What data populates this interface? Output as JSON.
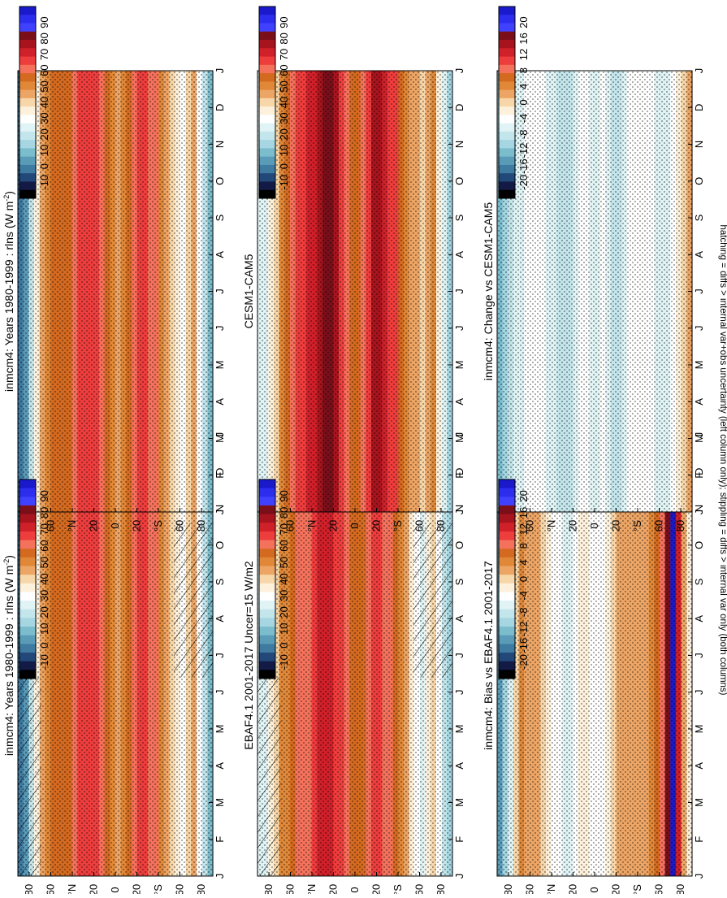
{
  "figure": {
    "rotation": "90deg clockwise",
    "footnote": "hatching = diffs > internal var+obs uncertainty (left column only); stippling = diffs > internal var only (both columns)"
  },
  "colorbars": {
    "absolute": {
      "labels": [
        "90",
        "80",
        "70",
        "60",
        "50",
        "40",
        "30",
        "20",
        "10",
        "0",
        "-10"
      ],
      "colors": [
        "#1a1acc",
        "#2d2dee",
        "#4040ff",
        "#7a0f1a",
        "#a8141d",
        "#d0202a",
        "#ee3d3d",
        "#f4715c",
        "#d46a20",
        "#e08838",
        "#eca565",
        "#f7d7aa",
        "#fdf1dc",
        "#ffffff",
        "#e0f3f5",
        "#c3e6ec",
        "#a5d6e1",
        "#7bbccd",
        "#5a9bb8",
        "#3f7aa0",
        "#22487a",
        "#121a45",
        "#000000"
      ]
    },
    "difference": {
      "labels": [
        "20",
        "16",
        "12",
        "8",
        "4",
        "0",
        "-4",
        "-8",
        "-12",
        "-16",
        "-20"
      ],
      "colors": [
        "#1a1acc",
        "#2d2dee",
        "#4040ff",
        "#7a0f1a",
        "#a8141d",
        "#d0202a",
        "#ee3d3d",
        "#f4715c",
        "#d46a20",
        "#e08838",
        "#eca565",
        "#f7d7aa",
        "#fdf1dc",
        "#ffffff",
        "#e0f3f5",
        "#c3e6ec",
        "#a5d6e1",
        "#7bbccd",
        "#5a9bb8",
        "#3f7aa0",
        "#22487a",
        "#121a45",
        "#000000"
      ]
    }
  },
  "chart_data": [
    {
      "type": "heatmap",
      "panel": "row1-left",
      "title": "inmcm4: Years 1980-1999 : rlns (W m",
      "title_sup": "-2",
      "title_tail": ")",
      "x": [
        "J",
        "F",
        "M",
        "A",
        "M",
        "J",
        "J",
        "A",
        "S",
        "O",
        "N",
        "D",
        "J"
      ],
      "y_ticks": [
        "80",
        "60",
        "°N",
        "20",
        "0",
        "20",
        "°S",
        "60",
        "80"
      ],
      "colorbar": "absolute",
      "lat_mean_profile": [
        {
          "lat": 85,
          "value": 5
        },
        {
          "lat": 70,
          "value": 40
        },
        {
          "lat": 55,
          "value": 55
        },
        {
          "lat": 40,
          "value": 55
        },
        {
          "lat": 25,
          "value": 65
        },
        {
          "lat": 10,
          "value": 55
        },
        {
          "lat": 0,
          "value": 45
        },
        {
          "lat": -10,
          "value": 50
        },
        {
          "lat": -20,
          "value": 62
        },
        {
          "lat": -35,
          "value": 58
        },
        {
          "lat": -50,
          "value": 42
        },
        {
          "lat": -62,
          "value": 32
        },
        {
          "lat": -72,
          "value": 45
        },
        {
          "lat": -85,
          "value": 15
        }
      ]
    },
    {
      "type": "heatmap",
      "panel": "row1-right",
      "title": "inmcm4: Years 1980-1999 : rlns (W m",
      "title_sup": "-2",
      "title_tail": ")",
      "x": [
        "J",
        "F",
        "M",
        "A",
        "M",
        "J",
        "J",
        "A",
        "S",
        "O",
        "N",
        "D",
        "J"
      ],
      "y_ticks": [
        "80",
        "60",
        "°N",
        "20",
        "0",
        "20",
        "°S",
        "60",
        "80"
      ],
      "colorbar": "absolute",
      "lat_mean_profile": [
        {
          "lat": 85,
          "value": 5
        },
        {
          "lat": 70,
          "value": 40
        },
        {
          "lat": 55,
          "value": 55
        },
        {
          "lat": 40,
          "value": 55
        },
        {
          "lat": 25,
          "value": 65
        },
        {
          "lat": 10,
          "value": 55
        },
        {
          "lat": 0,
          "value": 45
        },
        {
          "lat": -10,
          "value": 50
        },
        {
          "lat": -20,
          "value": 62
        },
        {
          "lat": -35,
          "value": 58
        },
        {
          "lat": -50,
          "value": 42
        },
        {
          "lat": -62,
          "value": 32
        },
        {
          "lat": -72,
          "value": 45
        },
        {
          "lat": -85,
          "value": 15
        }
      ]
    },
    {
      "type": "heatmap",
      "panel": "row2-left",
      "title": "EBAF4.1 2001-2017 Uncer=15 W/m2",
      "x": [
        "J",
        "F",
        "M",
        "A",
        "M",
        "J",
        "J",
        "A",
        "S",
        "O",
        "N",
        "D",
        "J"
      ],
      "y_ticks": [
        "80",
        "60",
        "°N",
        "20",
        "0",
        "20",
        "°S",
        "60",
        "80"
      ],
      "colorbar": "absolute",
      "lat_mean_profile": [
        {
          "lat": 85,
          "value": 25
        },
        {
          "lat": 70,
          "value": 45
        },
        {
          "lat": 55,
          "value": 55
        },
        {
          "lat": 40,
          "value": 60
        },
        {
          "lat": 25,
          "value": 68
        },
        {
          "lat": 10,
          "value": 58
        },
        {
          "lat": 0,
          "value": 50
        },
        {
          "lat": -10,
          "value": 55
        },
        {
          "lat": -20,
          "value": 62
        },
        {
          "lat": -35,
          "value": 55
        },
        {
          "lat": -50,
          "value": 40
        },
        {
          "lat": -62,
          "value": 28
        },
        {
          "lat": -72,
          "value": 40
        },
        {
          "lat": -85,
          "value": 20
        }
      ]
    },
    {
      "type": "heatmap",
      "panel": "row2-right",
      "title": "CESM1-CAM5",
      "x": [
        "J",
        "F",
        "M",
        "A",
        "M",
        "J",
        "J",
        "A",
        "S",
        "O",
        "N",
        "D",
        "J"
      ],
      "y_ticks": [
        "80",
        "60",
        "°N",
        "20",
        "0",
        "20",
        "°S",
        "60",
        "80"
      ],
      "colorbar": "absolute",
      "lat_mean_profile": [
        {
          "lat": 85,
          "value": 25
        },
        {
          "lat": 70,
          "value": 45
        },
        {
          "lat": 55,
          "value": 60
        },
        {
          "lat": 40,
          "value": 65
        },
        {
          "lat": 25,
          "value": 78
        },
        {
          "lat": 10,
          "value": 60
        },
        {
          "lat": 0,
          "value": 50
        },
        {
          "lat": -10,
          "value": 58
        },
        {
          "lat": -20,
          "value": 72
        },
        {
          "lat": -35,
          "value": 62
        },
        {
          "lat": -50,
          "value": 48
        },
        {
          "lat": -62,
          "value": 40
        },
        {
          "lat": -72,
          "value": 50
        },
        {
          "lat": -85,
          "value": 20
        }
      ]
    },
    {
      "type": "heatmap",
      "panel": "row3-left",
      "title": "inmcm4: Bias vs EBAF4.1 2001-2017",
      "x": [
        "J",
        "F",
        "M",
        "A",
        "M",
        "J",
        "J",
        "A",
        "S",
        "O",
        "N",
        "D",
        "J"
      ],
      "y_ticks": [
        "80",
        "60",
        "°N",
        "20",
        "0",
        "20",
        "°S",
        "60",
        "80"
      ],
      "colorbar": "difference",
      "lat_mean_profile": [
        {
          "lat": 85,
          "value": -12
        },
        {
          "lat": 70,
          "value": 3
        },
        {
          "lat": 55,
          "value": 2
        },
        {
          "lat": 40,
          "value": -3
        },
        {
          "lat": 25,
          "value": -5
        },
        {
          "lat": 10,
          "value": -2
        },
        {
          "lat": 0,
          "value": -4
        },
        {
          "lat": -10,
          "value": -3
        },
        {
          "lat": -20,
          "value": 1
        },
        {
          "lat": -35,
          "value": 2
        },
        {
          "lat": -50,
          "value": 2
        },
        {
          "lat": -62,
          "value": 6
        },
        {
          "lat": -72,
          "value": 20
        },
        {
          "lat": -85,
          "value": -2
        }
      ]
    },
    {
      "type": "heatmap",
      "panel": "row3-right",
      "title": "inmcm4: Change vs CESM1-CAM5",
      "x": [
        "J",
        "F",
        "M",
        "A",
        "M",
        "J",
        "J",
        "A",
        "S",
        "O",
        "N",
        "D",
        "J"
      ],
      "y_ticks": [
        "80",
        "60",
        "°N",
        "20",
        "0",
        "20",
        "°S",
        "60",
        "80"
      ],
      "colorbar": "difference",
      "lat_mean_profile": [
        {
          "lat": 85,
          "value": -10
        },
        {
          "lat": 70,
          "value": -5
        },
        {
          "lat": 55,
          "value": -3
        },
        {
          "lat": 40,
          "value": -5
        },
        {
          "lat": 25,
          "value": -8
        },
        {
          "lat": 10,
          "value": -3
        },
        {
          "lat": 0,
          "value": -5
        },
        {
          "lat": -10,
          "value": -4
        },
        {
          "lat": -20,
          "value": -8
        },
        {
          "lat": -35,
          "value": -3
        },
        {
          "lat": -50,
          "value": -3
        },
        {
          "lat": -62,
          "value": -6
        },
        {
          "lat": -72,
          "value": -4
        },
        {
          "lat": -85,
          "value": 2
        }
      ]
    }
  ]
}
